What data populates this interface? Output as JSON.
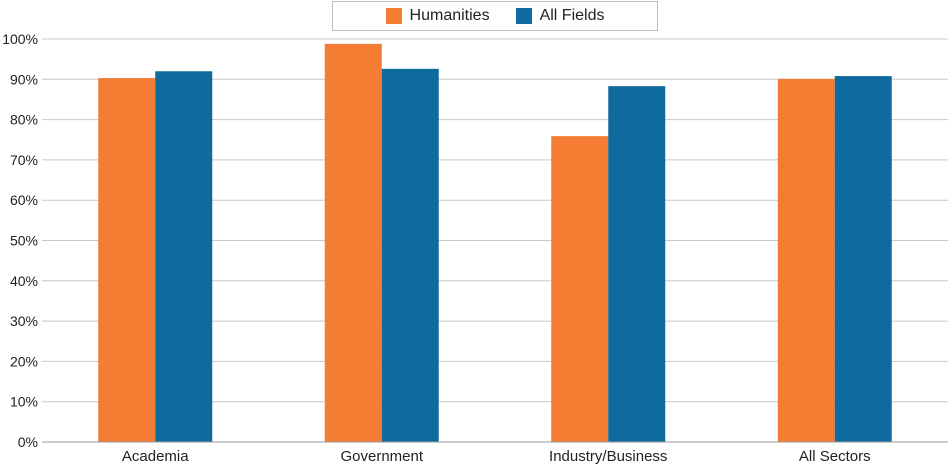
{
  "chart_data": {
    "type": "bar",
    "categories": [
      "Academia",
      "Government",
      "Industry/Business",
      "All Sectors"
    ],
    "series": [
      {
        "name": "Humanities",
        "color": "#f47c33",
        "values": [
          90.3,
          98.8,
          75.9,
          90.1
        ]
      },
      {
        "name": "All Fields",
        "color": "#0f6a9e",
        "values": [
          92.0,
          92.6,
          88.3,
          90.8
        ]
      }
    ],
    "yticks": [
      "0%",
      "10%",
      "20%",
      "30%",
      "40%",
      "50%",
      "60%",
      "70%",
      "80%",
      "90%",
      "100%"
    ],
    "ylim": [
      0,
      100
    ],
    "grid": true,
    "legend_position": "top-center"
  }
}
